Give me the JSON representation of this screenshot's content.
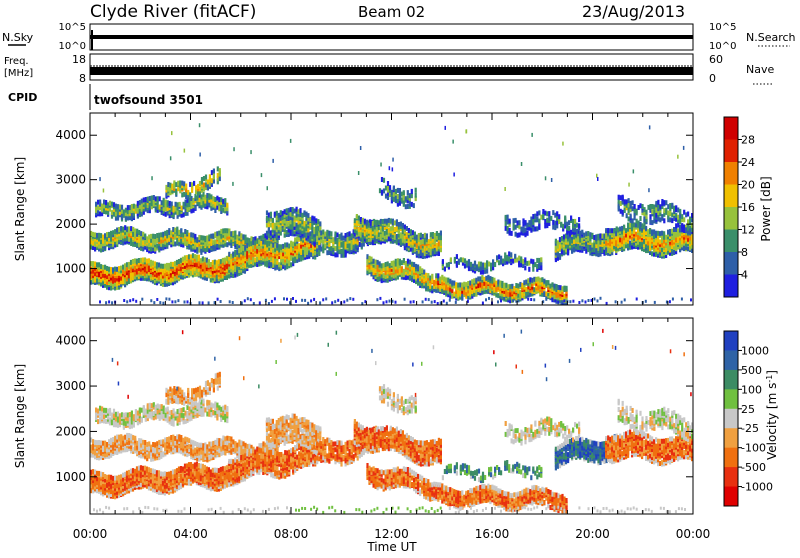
{
  "header": {
    "station": "Clyde River (fitACF)",
    "beam": "Beam 02",
    "date": "23/Aug/2013"
  },
  "top_panels": {
    "nsky_label": "N.Sky",
    "nsky_ticks": [
      "10^5",
      "10^0"
    ],
    "nsearch_label": "N.Search",
    "nsearch_ticks": [
      "10^5",
      "10^0"
    ],
    "freq_label": "Freq.",
    "freq_unit": "[MHz]",
    "freq_ticks": [
      "18",
      "8"
    ],
    "nave_label": "Nave",
    "nave_ticks": [
      "60",
      "0"
    ],
    "cpid_label": "CPID",
    "cpid_value": "twofsound 3501"
  },
  "chart_data": [
    {
      "type": "heatmap",
      "name": "power",
      "ylabel": "Slant Range [km]",
      "xlabel": "",
      "ylim": [
        180,
        4500
      ],
      "x_ticks": [
        "00:00",
        "04:00",
        "08:00",
        "12:00",
        "16:00",
        "20:00",
        "00:00"
      ],
      "y_ticks": [
        1000,
        2000,
        3000,
        4000
      ],
      "colorbar": {
        "label": "Power [dB]",
        "ticks": [
          "4",
          "8",
          "12",
          "16",
          "20",
          "24",
          "28"
        ],
        "colors": [
          "#1f1fe0",
          "#2e5fa8",
          "#3a8f6a",
          "#97c23c",
          "#f0c000",
          "#f08000",
          "#e02000",
          "#d00000"
        ]
      }
    },
    {
      "type": "heatmap",
      "name": "velocity",
      "ylabel": "Slant Range [km]",
      "xlabel": "Time UT",
      "ylim": [
        180,
        4500
      ],
      "x_ticks": [
        "00:00",
        "04:00",
        "08:00",
        "12:00",
        "16:00",
        "20:00",
        "00:00"
      ],
      "y_ticks": [
        1000,
        2000,
        3000,
        4000
      ],
      "colorbar": {
        "label": "Velocity [m s^-1]",
        "ticks": [
          "1000",
          "500",
          "100",
          "25",
          "-25",
          "-100",
          "-500",
          "-1000"
        ],
        "colors": [
          "#2040c0",
          "#2f63a6",
          "#3c8c64",
          "#70c040",
          "#c8c8c8",
          "#f0a040",
          "#f07010",
          "#e83010",
          "#e00000"
        ]
      }
    }
  ]
}
